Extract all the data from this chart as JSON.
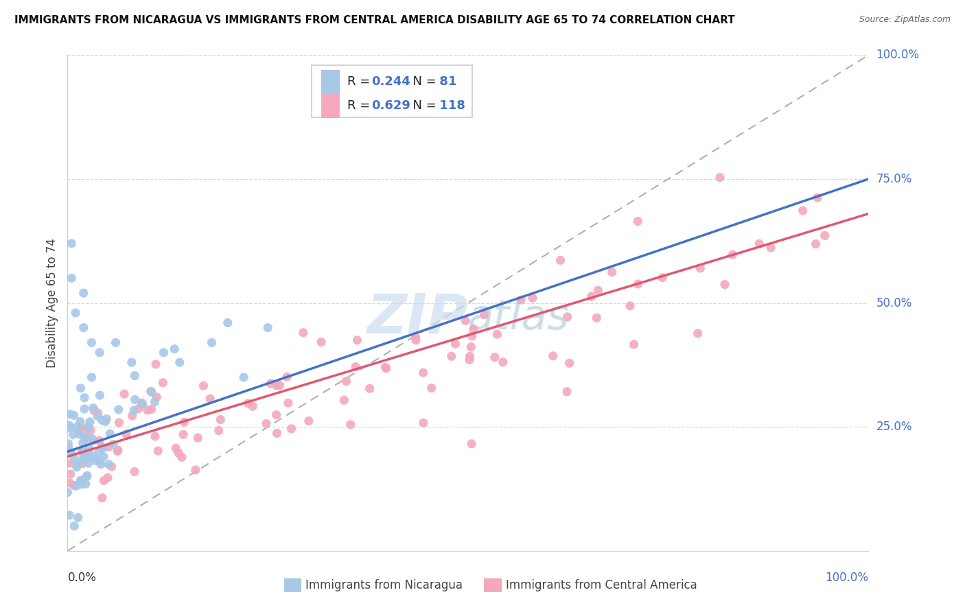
{
  "title": "IMMIGRANTS FROM NICARAGUA VS IMMIGRANTS FROM CENTRAL AMERICA DISABILITY AGE 65 TO 74 CORRELATION CHART",
  "source": "Source: ZipAtlas.com",
  "ylabel": "Disability Age 65 to 74",
  "legend_label1": "Immigrants from Nicaragua",
  "legend_label2": "Immigrants from Central America",
  "R1": 0.244,
  "N1": 81,
  "R2": 0.629,
  "N2": 118,
  "color1": "#a8c8e8",
  "color2": "#f4a8bc",
  "line1_color": "#4472c4",
  "line2_color": "#e05870",
  "dashed_color": "#b0b0b0",
  "background_color": "#ffffff",
  "grid_color": "#d8d8d8",
  "watermark_color": "#ccddf0",
  "xlim": [
    0.0,
    1.0
  ],
  "ylim": [
    0.0,
    1.0
  ],
  "ytick_vals": [
    0.25,
    0.5,
    0.75,
    1.0
  ],
  "ytick_labels": [
    "25.0%",
    "50.0%",
    "75.0%",
    "100.0%"
  ]
}
